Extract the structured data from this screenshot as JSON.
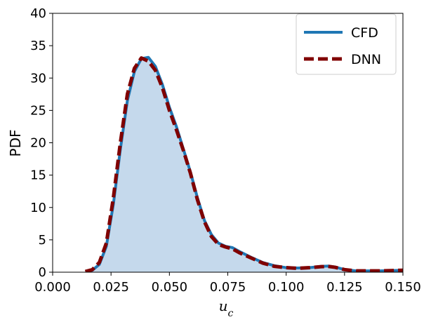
{
  "chart_data": {
    "type": "area",
    "xlabel": "u",
    "xlabel_sub": "c",
    "ylabel": "PDF",
    "xlim": [
      0.0,
      0.15
    ],
    "ylim": [
      0,
      40
    ],
    "xticks": [
      0.0,
      0.025,
      0.05,
      0.075,
      0.1,
      0.125,
      0.15
    ],
    "xtick_labels": [
      "0.000",
      "0.025",
      "0.050",
      "0.075",
      "0.100",
      "0.125",
      "0.150"
    ],
    "yticks": [
      0,
      5,
      10,
      15,
      20,
      25,
      30,
      35,
      40
    ],
    "ytick_labels": [
      "0",
      "5",
      "10",
      "15",
      "20",
      "25",
      "30",
      "35",
      "40"
    ],
    "grid": false,
    "legend_position": "top-right",
    "series": [
      {
        "name": "CFD",
        "color": "#1f77b4",
        "fill": "#c5d9ec",
        "style": "solid",
        "x": [
          0.014,
          0.017,
          0.02,
          0.023,
          0.026,
          0.029,
          0.032,
          0.035,
          0.038,
          0.041,
          0.044,
          0.047,
          0.05,
          0.053,
          0.056,
          0.059,
          0.062,
          0.065,
          0.068,
          0.071,
          0.074,
          0.077,
          0.08,
          0.085,
          0.09,
          0.095,
          0.1,
          0.105,
          0.11,
          0.115,
          0.118,
          0.121,
          0.125,
          0.13,
          0.135,
          0.14,
          0.145,
          0.15
        ],
        "y": [
          0.1,
          0.3,
          1.2,
          4.0,
          10.5,
          19.0,
          26.5,
          31.0,
          33.0,
          33.2,
          31.8,
          29.0,
          25.5,
          22.5,
          19.0,
          15.5,
          11.5,
          8.0,
          5.8,
          4.5,
          4.0,
          3.8,
          3.2,
          2.3,
          1.5,
          1.0,
          0.7,
          0.65,
          0.7,
          0.9,
          0.95,
          0.8,
          0.4,
          0.2,
          0.2,
          0.2,
          0.25,
          0.3
        ]
      },
      {
        "name": "DNN",
        "color": "#800000",
        "style": "dashed",
        "x": [
          0.014,
          0.017,
          0.02,
          0.023,
          0.026,
          0.029,
          0.032,
          0.035,
          0.038,
          0.041,
          0.044,
          0.047,
          0.05,
          0.053,
          0.056,
          0.059,
          0.062,
          0.065,
          0.068,
          0.071,
          0.074,
          0.077,
          0.08,
          0.085,
          0.09,
          0.095,
          0.1,
          0.105,
          0.11,
          0.115,
          0.118,
          0.121,
          0.125,
          0.13,
          0.135,
          0.14,
          0.145,
          0.15
        ],
        "y": [
          0.1,
          0.4,
          1.5,
          4.5,
          11.5,
          20.0,
          27.5,
          31.5,
          33.1,
          32.6,
          31.2,
          28.5,
          25.0,
          22.0,
          18.8,
          15.3,
          11.2,
          7.8,
          5.5,
          4.3,
          3.9,
          3.6,
          3.0,
          2.2,
          1.4,
          0.9,
          0.7,
          0.6,
          0.7,
          0.85,
          0.9,
          0.75,
          0.4,
          0.2,
          0.2,
          0.2,
          0.25,
          0.3
        ]
      }
    ]
  }
}
